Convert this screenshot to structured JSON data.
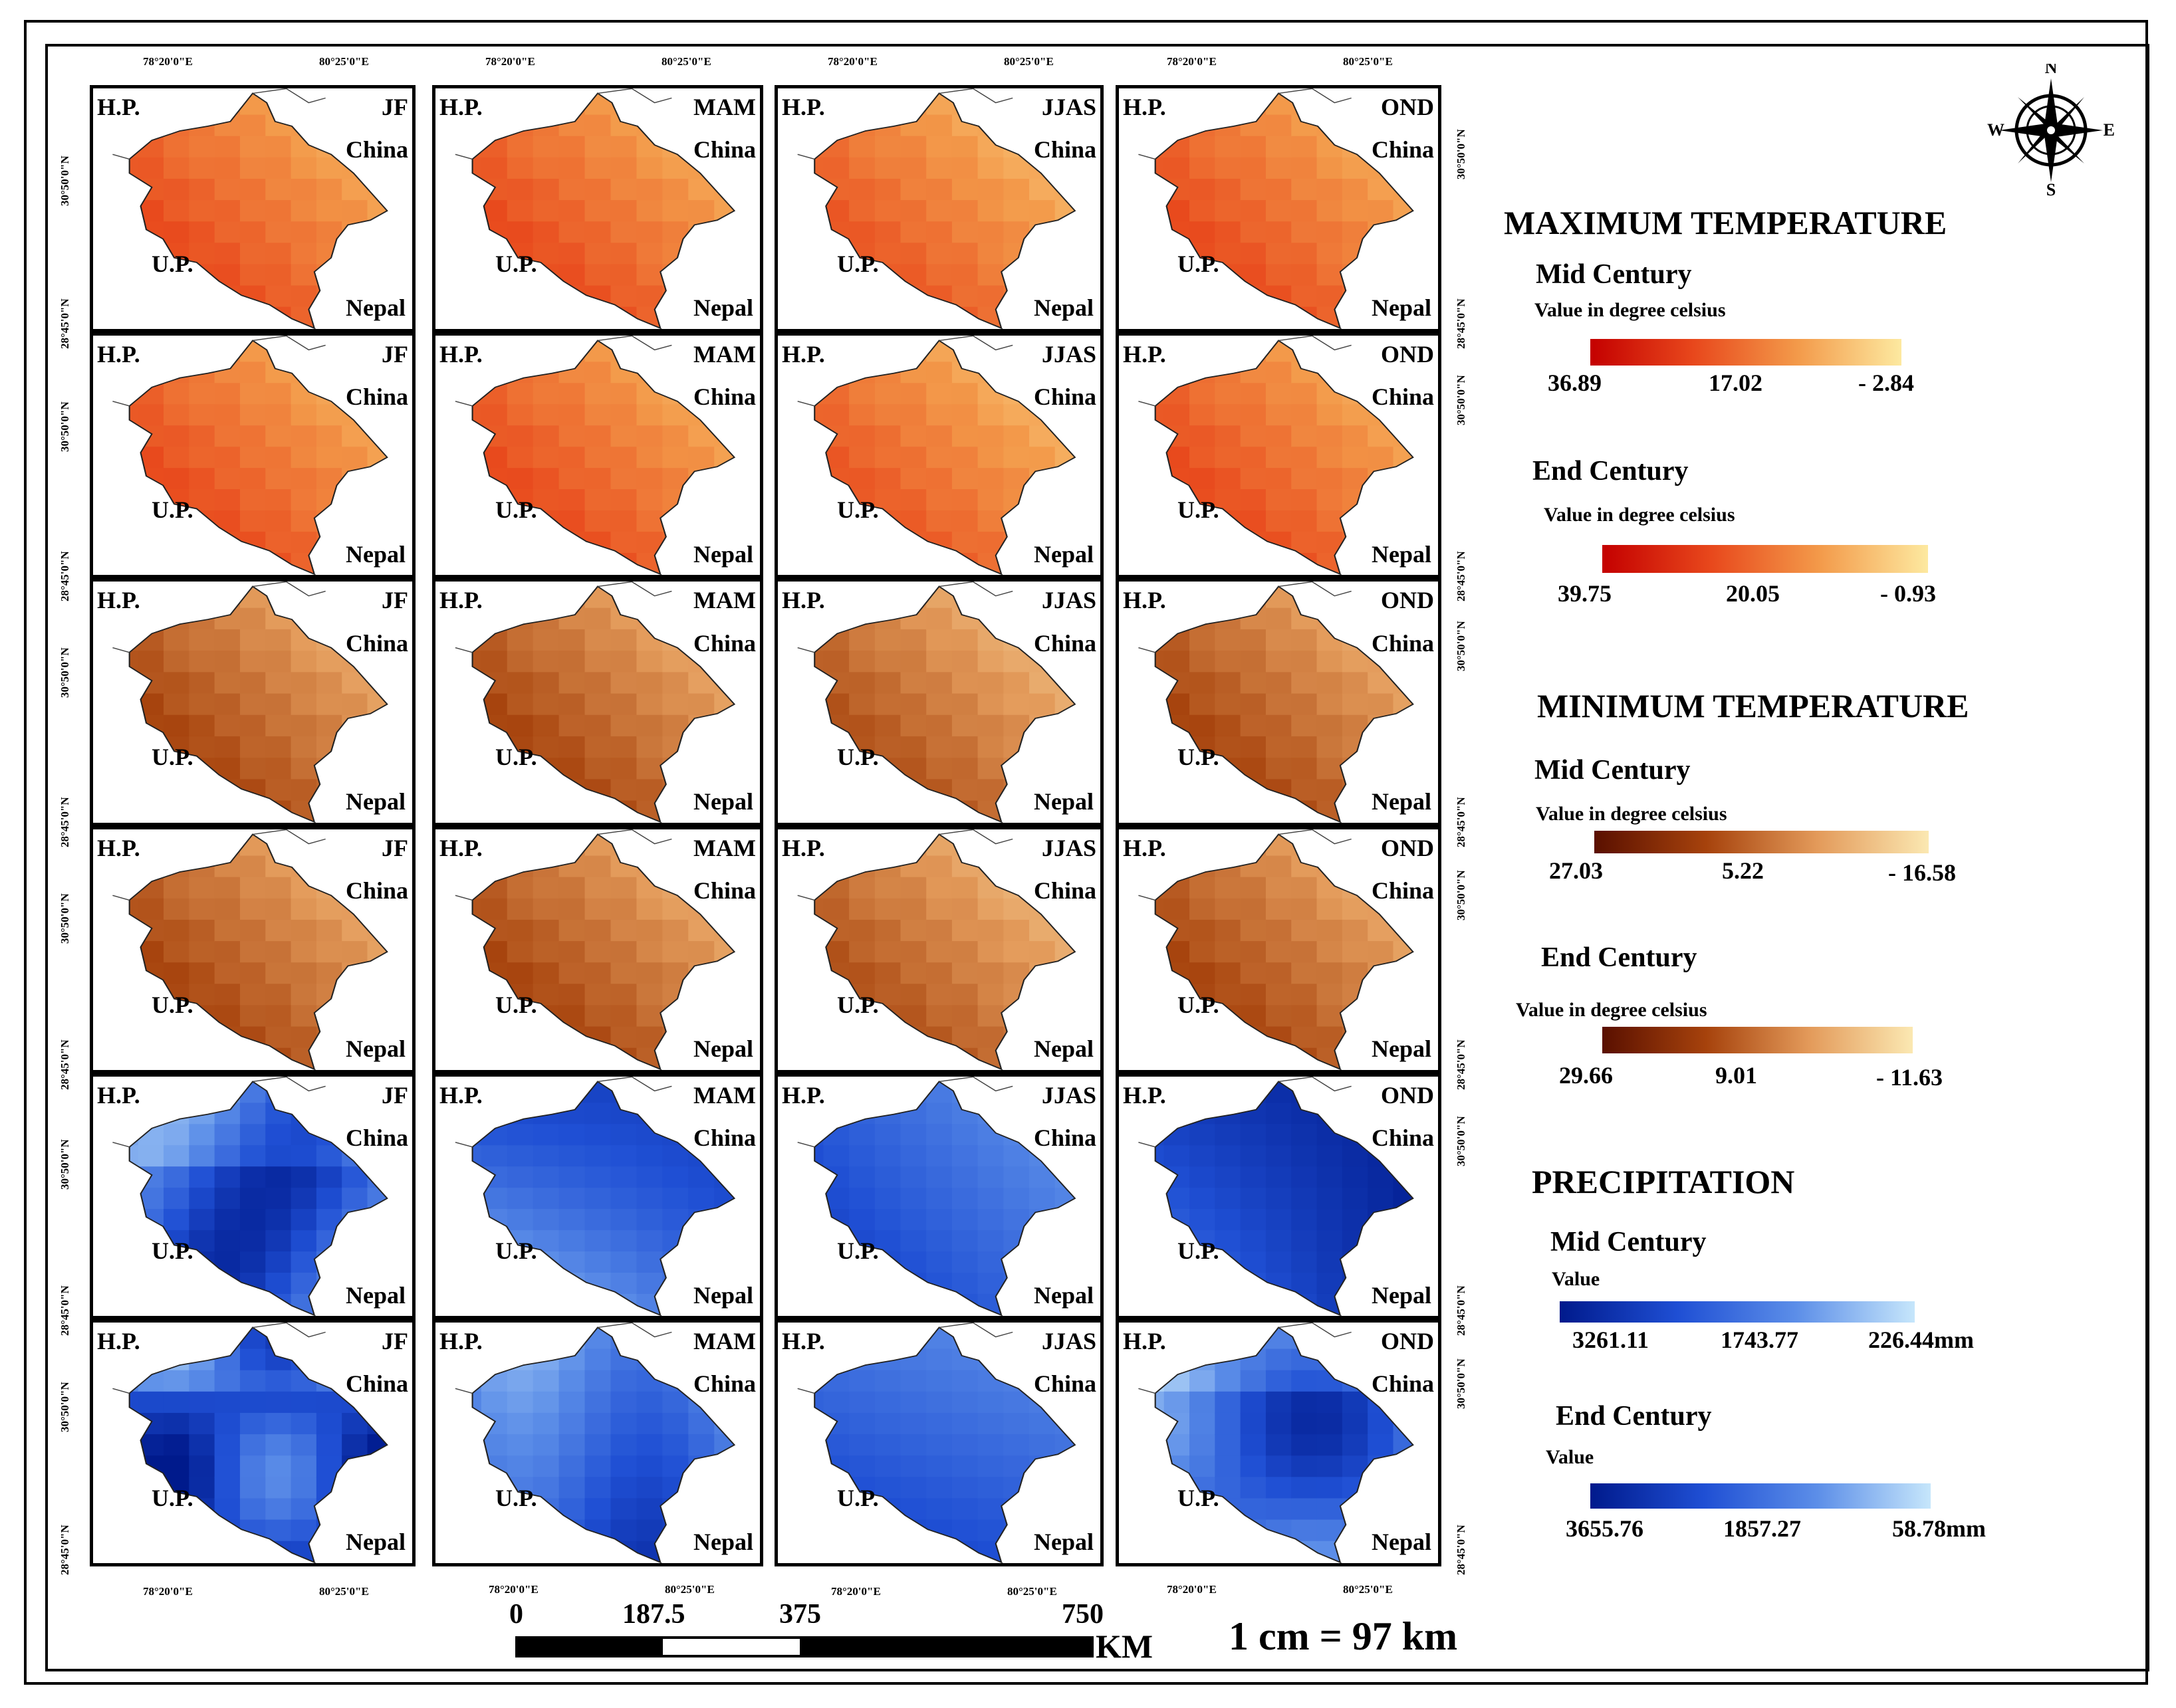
{
  "panel_labels": {
    "west": "H.P.",
    "north": "China",
    "south_west": "U.P.",
    "south_east": "Nepal"
  },
  "seasons": [
    "JF",
    "MAM",
    "JJAS",
    "OND"
  ],
  "rows": [
    {
      "variable": "Maximum temperature",
      "period": "Mid Century",
      "palette": "maxtemp"
    },
    {
      "variable": "Maximum temperature",
      "period": "End Century",
      "palette": "maxtemp"
    },
    {
      "variable": "Minimum temperature",
      "period": "Mid Century",
      "palette": "mintemp"
    },
    {
      "variable": "Minimum temperature",
      "period": "End Century",
      "palette": "mintemp"
    },
    {
      "variable": "Precipitation",
      "period": "Mid Century",
      "palette": "precip"
    },
    {
      "variable": "Precipitation",
      "period": "End Century",
      "palette": "precip"
    }
  ],
  "coordinates": {
    "lon_left": "78°20'0\"E",
    "lon_right": "80°25'0\"E",
    "lat_top": "30°50'0\"N",
    "lat_bottom": "28°45'0\"N"
  },
  "north_arrow": {
    "n": "N",
    "s": "S",
    "e": "E",
    "w": "W"
  },
  "legend": {
    "max_temp": {
      "title": "MAXIMUM TEMPERATURE",
      "mid": {
        "label": "Mid Century",
        "unit": "Value in degree celsius",
        "values": [
          "36.89",
          "17.02",
          "- 2.84"
        ]
      },
      "end": {
        "label": "End Century",
        "unit": "Value in degree celsius",
        "values": [
          "39.75",
          "20.05",
          "- 0.93"
        ]
      }
    },
    "min_temp": {
      "title": "MINIMUM TEMPERATURE",
      "mid": {
        "label": "Mid Century",
        "unit": "Value in degree celsius",
        "values": [
          "27.03",
          "5.22",
          "- 16.58"
        ]
      },
      "end": {
        "label": "End Century",
        "unit": "Value in degree celsius",
        "values": [
          "29.66",
          "9.01",
          "- 11.63"
        ]
      }
    },
    "precip": {
      "title": "PRECIPITATION",
      "mid": {
        "label": "Mid Century",
        "unit": "Value",
        "values": [
          "3261.11",
          "1743.77",
          "226.44mm"
        ]
      },
      "end": {
        "label": "End Century",
        "unit": "Value",
        "values": [
          "3655.76",
          "1857.27",
          "58.78mm"
        ]
      }
    }
  },
  "colors": {
    "maxtemp": [
      "#c40000",
      "#e8481c",
      "#f39a4a",
      "#fde9a0"
    ],
    "mintemp": [
      "#5a1000",
      "#a6420c",
      "#e39a5a",
      "#fbe8b2"
    ],
    "precip": [
      "#001a8c",
      "#1f4fd4",
      "#5c8ee8",
      "#c6e6fb"
    ]
  },
  "scale_bar": {
    "ticks": [
      "0",
      "187.5",
      "375",
      "750"
    ],
    "unit": "KM",
    "ratio": "1 cm = 97 km"
  }
}
